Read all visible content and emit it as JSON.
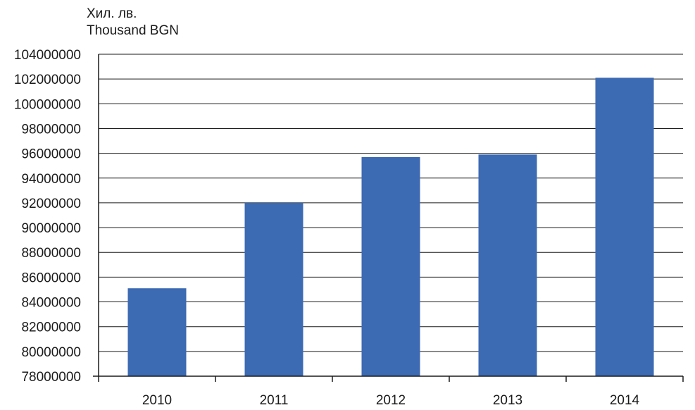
{
  "unit_label": {
    "line1": "Хил. лв.",
    "line2": "Thousand BGN"
  },
  "chart_data": {
    "type": "bar",
    "categories": [
      "2010",
      "2011",
      "2012",
      "2013",
      "2014"
    ],
    "values": [
      85100000,
      92000000,
      95700000,
      95900000,
      102100000
    ],
    "ylim": [
      78000000,
      104000000
    ],
    "yticks": [
      78000000,
      80000000,
      82000000,
      84000000,
      86000000,
      88000000,
      90000000,
      92000000,
      94000000,
      96000000,
      98000000,
      100000000,
      102000000,
      104000000
    ],
    "grid": true,
    "legend": "none",
    "bar_color": "#3c6ab3"
  }
}
